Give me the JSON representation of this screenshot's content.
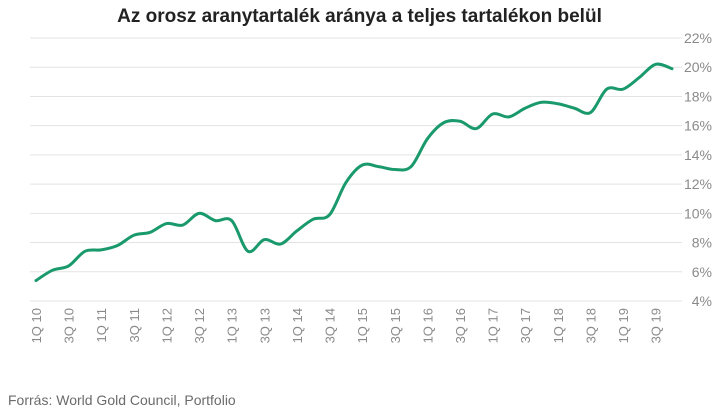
{
  "chart_data": {
    "type": "line",
    "title": "Az orosz aranytartalék aránya a teljes tartalékon belül",
    "xlabel": "",
    "ylabel": "",
    "ylim": [
      4,
      22
    ],
    "yticks": [
      "4%",
      "6%",
      "8%",
      "10%",
      "12%",
      "14%",
      "16%",
      "18%",
      "20%",
      "22%"
    ],
    "grid": true,
    "tick_labels": [
      "1Q 10",
      "3Q 10",
      "1Q 11",
      "3Q 11",
      "1Q 12",
      "3Q 12",
      "1Q 13",
      "3Q 13",
      "1Q 14",
      "3Q 14",
      "1Q 15",
      "3Q 15",
      "1Q 16",
      "3Q 16",
      "1Q 17",
      "3Q 17",
      "1Q 18",
      "3Q 18",
      "1Q 19",
      "3Q 19"
    ],
    "categories": [
      "1Q 10",
      "2Q 10",
      "3Q 10",
      "4Q 10",
      "1Q 11",
      "2Q 11",
      "3Q 11",
      "4Q 11",
      "1Q 12",
      "2Q 12",
      "3Q 12",
      "4Q 12",
      "1Q 13",
      "2Q 13",
      "3Q 13",
      "4Q 13",
      "1Q 14",
      "2Q 14",
      "3Q 14",
      "4Q 14",
      "1Q 15",
      "2Q 15",
      "3Q 15",
      "4Q 15",
      "1Q 16",
      "2Q 16",
      "3Q 16",
      "4Q 16",
      "1Q 17",
      "2Q 17",
      "3Q 17",
      "4Q 17",
      "1Q 18",
      "2Q 18",
      "3Q 18",
      "4Q 18",
      "1Q 19",
      "2Q 19",
      "3Q 19",
      "4Q 19"
    ],
    "series": [
      {
        "color": "#1a9a6c",
        "values": [
          5.4,
          6.1,
          6.4,
          7.4,
          7.5,
          7.8,
          8.5,
          8.7,
          9.3,
          9.2,
          10.0,
          9.5,
          9.5,
          7.4,
          8.2,
          7.9,
          8.8,
          9.6,
          9.9,
          12.1,
          13.3,
          13.2,
          13.0,
          13.2,
          15.1,
          16.2,
          16.3,
          15.8,
          16.8,
          16.6,
          17.2,
          17.6,
          17.5,
          17.2,
          16.9,
          18.5,
          18.5,
          19.3,
          20.2,
          19.9
        ]
      }
    ]
  },
  "source": "Forrás: World Gold Council, Portfolio"
}
